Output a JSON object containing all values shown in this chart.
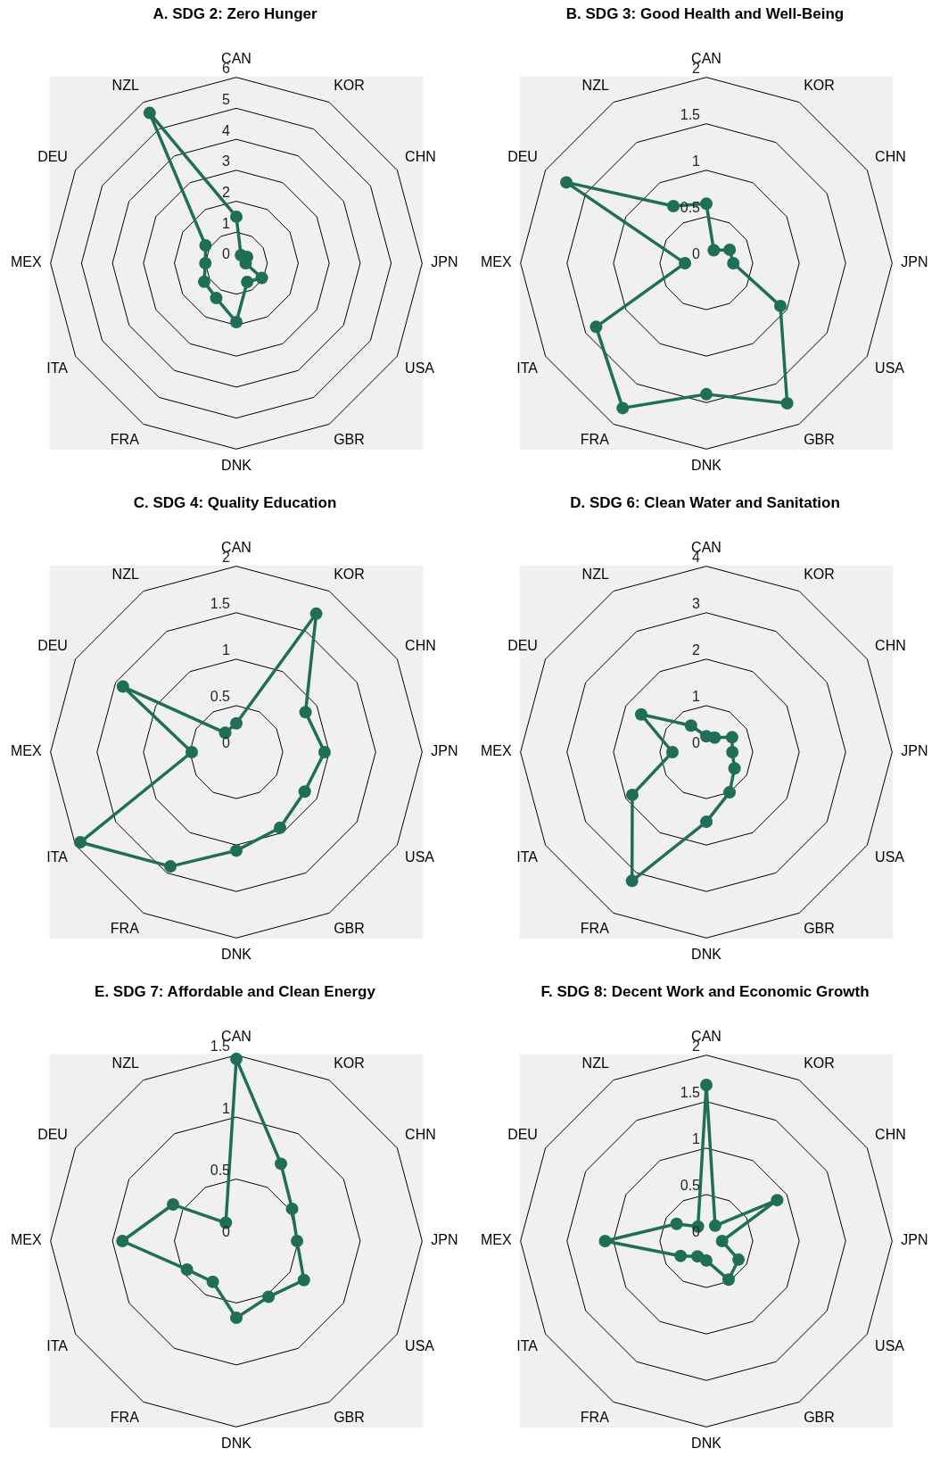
{
  "chart_data": [
    {
      "type": "radar",
      "title": "A. SDG 2: Zero Hunger",
      "categories": [
        "CAN",
        "KOR",
        "CHN",
        "JPN",
        "USA",
        "GBR",
        "DNK",
        "FRA",
        "ITA",
        "MEX",
        "DEU",
        "NZL"
      ],
      "series": [
        {
          "color": "#1f6e58",
          "values": [
            1.5,
            0.3,
            0.4,
            0.3,
            0.95,
            0.7,
            1.9,
            1.3,
            1.2,
            1.0,
            1.15,
            5.6
          ]
        }
      ],
      "ylim": [
        0,
        6
      ],
      "yticks": [
        0,
        1,
        2,
        3,
        4,
        5,
        6
      ],
      "grid": true,
      "marker": "circle",
      "legend": false
    },
    {
      "type": "radar",
      "title": "B. SDG 3: Good Health and Well-Being",
      "categories": [
        "CAN",
        "KOR",
        "CHN",
        "JPN",
        "USA",
        "GBR",
        "DNK",
        "FRA",
        "ITA",
        "MEX",
        "DEU",
        "NZL"
      ],
      "series": [
        {
          "color": "#1f6e58",
          "values": [
            0.64,
            0.16,
            0.29,
            0.29,
            0.92,
            1.74,
            1.41,
            1.8,
            1.37,
            0.23,
            1.74,
            0.71
          ]
        }
      ],
      "ylim": [
        0,
        2
      ],
      "yticks": [
        0,
        0.5,
        1,
        1.5,
        2
      ],
      "grid": true,
      "marker": "circle",
      "legend": false
    },
    {
      "type": "radar",
      "title": "C. SDG 4: Quality Education",
      "categories": [
        "CAN",
        "KOR",
        "CHN",
        "JPN",
        "USA",
        "GBR",
        "DNK",
        "FRA",
        "ITA",
        "MEX",
        "DEU",
        "NZL"
      ],
      "series": [
        {
          "color": "#1f6e58",
          "values": [
            0.31,
            1.72,
            0.86,
            0.95,
            0.85,
            0.94,
            1.06,
            1.42,
            1.94,
            0.48,
            1.41,
            0.24
          ]
        }
      ],
      "ylim": [
        0,
        2
      ],
      "yticks": [
        0,
        0.5,
        1,
        1.5,
        2
      ],
      "grid": true,
      "marker": "circle",
      "legend": false
    },
    {
      "type": "radar",
      "title": "D. SDG 6: Clean Water and Sanitation",
      "categories": [
        "CAN",
        "KOR",
        "CHN",
        "JPN",
        "USA",
        "GBR",
        "DNK",
        "FRA",
        "ITA",
        "MEX",
        "DEU",
        "NZL"
      ],
      "series": [
        {
          "color": "#1f6e58",
          "values": [
            0.34,
            0.36,
            0.64,
            0.56,
            0.7,
            1.0,
            1.5,
            3.2,
            1.84,
            0.73,
            1.62,
            0.66
          ]
        }
      ],
      "ylim": [
        0,
        4
      ],
      "yticks": [
        0,
        1,
        2,
        3,
        4
      ],
      "grid": true,
      "marker": "circle",
      "legend": false
    },
    {
      "type": "radar",
      "title": "E. SDG 7: Affordable and Clean Energy",
      "categories": [
        "CAN",
        "KOR",
        "CHN",
        "JPN",
        "USA",
        "GBR",
        "DNK",
        "FRA",
        "ITA",
        "MEX",
        "DEU",
        "NZL"
      ],
      "series": [
        {
          "color": "#1f6e58",
          "values": [
            1.47,
            0.72,
            0.52,
            0.49,
            0.63,
            0.52,
            0.62,
            0.38,
            0.46,
            0.92,
            0.59,
            0.17
          ]
        }
      ],
      "ylim": [
        0,
        1.5
      ],
      "yticks": [
        0,
        0.5,
        1,
        1.5
      ],
      "grid": true,
      "marker": "circle",
      "legend": false
    },
    {
      "type": "radar",
      "title": "F. SDG 8: Decent Work and Economic Growth",
      "categories": [
        "CAN",
        "KOR",
        "CHN",
        "JPN",
        "USA",
        "GBR",
        "DNK",
        "FRA",
        "ITA",
        "MEX",
        "DEU",
        "NZL"
      ],
      "series": [
        {
          "color": "#1f6e58",
          "values": [
            1.68,
            0.19,
            0.88,
            0.17,
            0.4,
            0.48,
            0.21,
            0.19,
            0.32,
            1.09,
            0.37,
            0.18
          ]
        }
      ],
      "ylim": [
        0,
        2
      ],
      "yticks": [
        0,
        0.5,
        1,
        1.5,
        2
      ],
      "grid": true,
      "marker": "circle",
      "legend": false
    }
  ]
}
